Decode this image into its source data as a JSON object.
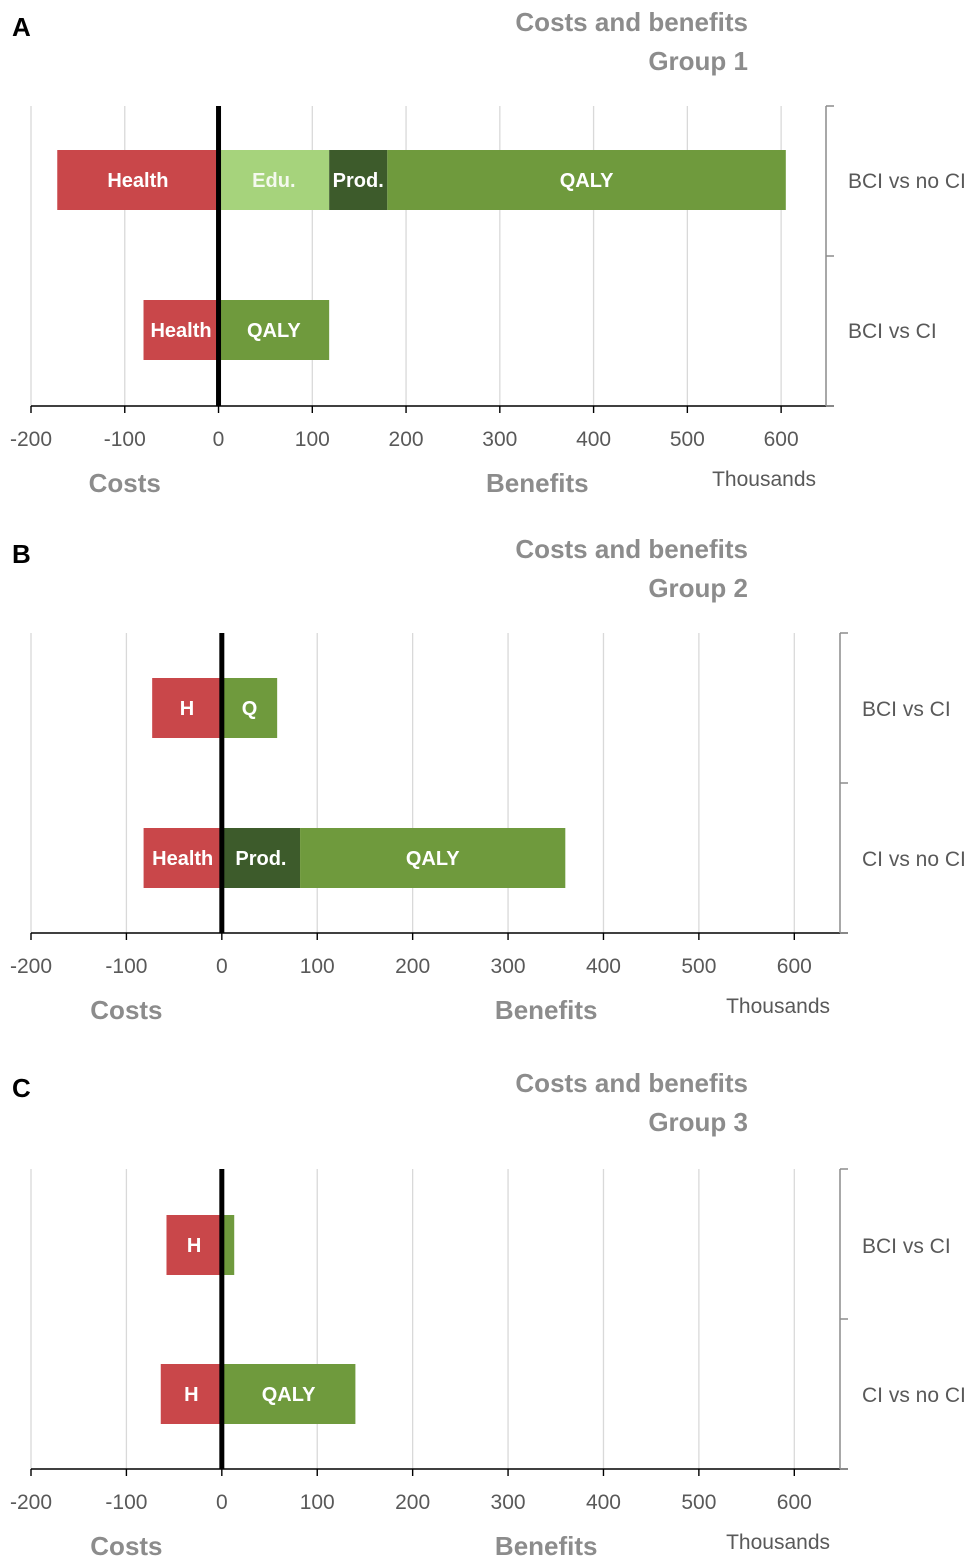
{
  "colors": {
    "health": "#c9474a",
    "edu": "#a6d37c",
    "prod": "#3d5b2b",
    "qaly": "#6f9a3d",
    "grid": "#d9d9d9",
    "axis": "#000000",
    "text_gray": "#8c8c8c",
    "text_dark": "#595959",
    "zero_line": "#000000"
  },
  "chart_data": [
    {
      "type": "bar",
      "orientation": "horizontal",
      "stacked": true,
      "panel_label": "A",
      "title": "Costs and benefits",
      "subtitle": "Group 1",
      "categories": [
        "BCI vs no CI",
        "BCI vs CI"
      ],
      "xlim": [
        -200,
        650
      ],
      "xticks": [
        -200,
        -100,
        0,
        100,
        200,
        300,
        400,
        500,
        600
      ],
      "costs_label": "Costs",
      "benefits_label": "Benefits",
      "units": "Thousands",
      "grid": true,
      "segments": [
        [
          {
            "key": "health",
            "label": "Health",
            "start": -172,
            "end": 0
          },
          {
            "key": "edu",
            "label": "Edu.",
            "start": 0,
            "end": 118
          },
          {
            "key": "prod",
            "label": "Prod.",
            "start": 118,
            "end": 180
          },
          {
            "key": "qaly",
            "label": "QALY",
            "start": 180,
            "end": 605
          }
        ],
        [
          {
            "key": "health",
            "label": "Health",
            "start": -80,
            "end": 0
          },
          {
            "key": "qaly",
            "label": "QALY",
            "start": 0,
            "end": 118
          }
        ]
      ]
    },
    {
      "type": "bar",
      "orientation": "horizontal",
      "stacked": true,
      "panel_label": "B",
      "title": "Costs and benefits",
      "subtitle": "Group 2",
      "categories": [
        "BCI vs CI",
        "CI vs no CI"
      ],
      "xlim": [
        -200,
        650
      ],
      "xticks": [
        -200,
        -100,
        0,
        100,
        200,
        300,
        400,
        500,
        600
      ],
      "costs_label": "Costs",
      "benefits_label": "Benefits",
      "units": "Thousands",
      "grid": true,
      "segments": [
        [
          {
            "key": "health",
            "label": "H",
            "start": -73,
            "end": 0
          },
          {
            "key": "qaly",
            "label": "Q",
            "start": 0,
            "end": 58
          }
        ],
        [
          {
            "key": "health",
            "label": "Health",
            "start": -82,
            "end": 0
          },
          {
            "key": "prod",
            "label": "Prod.",
            "start": 0,
            "end": 82
          },
          {
            "key": "qaly",
            "label": "QALY",
            "start": 82,
            "end": 360
          }
        ]
      ]
    },
    {
      "type": "bar",
      "orientation": "horizontal",
      "stacked": true,
      "panel_label": "C",
      "title": "Costs and benefits",
      "subtitle": "Group 3",
      "categories": [
        "BCI vs CI",
        "CI vs no CI"
      ],
      "xlim": [
        -200,
        650
      ],
      "xticks": [
        -200,
        -100,
        0,
        100,
        200,
        300,
        400,
        500,
        600
      ],
      "costs_label": "Costs",
      "benefits_label": "Benefits",
      "units": "Thousands",
      "grid": true,
      "segments": [
        [
          {
            "key": "health",
            "label": "H",
            "start": -58,
            "end": 0
          },
          {
            "key": "qaly",
            "label": "",
            "start": 0,
            "end": 13
          }
        ],
        [
          {
            "key": "health",
            "label": "H",
            "start": -64,
            "end": 0
          },
          {
            "key": "qaly",
            "label": "QALY",
            "start": 0,
            "end": 140
          }
        ]
      ]
    }
  ]
}
